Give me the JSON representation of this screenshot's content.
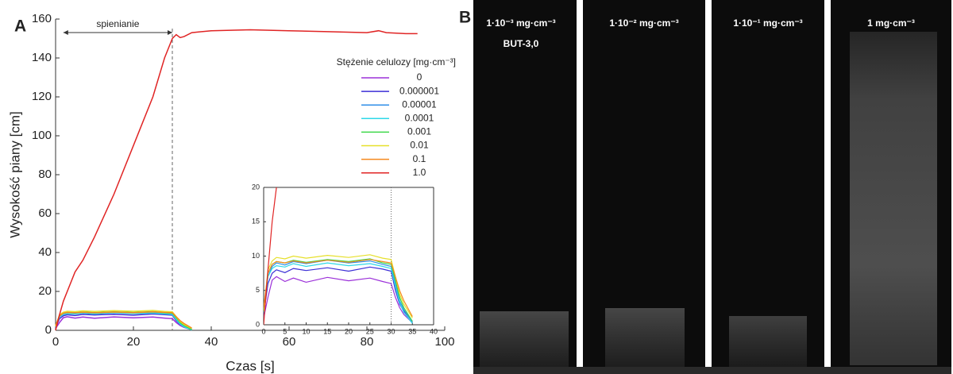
{
  "panels": {
    "a": "A",
    "b": "B"
  },
  "chart_data": {
    "type": "line",
    "x_label": "Czas [s]",
    "y_label": "Wysokość piany [cm]",
    "legend_title": "Stężenie celulozy [mg·cm⁻³]",
    "annotation": "spienianie",
    "annotation_range": [
      2,
      30
    ],
    "marker_x": 30,
    "xlim": [
      0,
      100
    ],
    "ylim": [
      0,
      160
    ],
    "xticks": [
      0,
      20,
      40,
      60,
      80,
      100
    ],
    "yticks": [
      0,
      20,
      40,
      60,
      80,
      100,
      120,
      140,
      160
    ],
    "x": [
      0,
      1,
      2,
      3,
      5,
      7,
      10,
      15,
      20,
      25,
      28,
      30,
      31,
      32,
      33,
      35,
      40,
      50,
      60,
      70,
      80,
      83,
      85,
      90,
      93
    ],
    "series": [
      {
        "name": "0",
        "color": "#9b30d9",
        "values": [
          1,
          4,
          6.5,
          7,
          6.3,
          6.8,
          6.2,
          6.9,
          6.4,
          6.8,
          6.3,
          6,
          4,
          2.5,
          1.5,
          0.3,
          null,
          null,
          null,
          null,
          null,
          null,
          null,
          null,
          null
        ]
      },
      {
        "name": "0.000001",
        "color": "#3c2fd6",
        "values": [
          1.5,
          6,
          7.5,
          8,
          7.6,
          8.2,
          7.9,
          8.3,
          7.8,
          8.4,
          8.1,
          7.8,
          5,
          3,
          2,
          0.5,
          null,
          null,
          null,
          null,
          null,
          null,
          null,
          null,
          null
        ]
      },
      {
        "name": "0.00001",
        "color": "#2f8fe8",
        "values": [
          2,
          7,
          8.5,
          9,
          8.7,
          9.2,
          8.9,
          9.4,
          9,
          9.3,
          8.8,
          8.5,
          6,
          3.5,
          2.2,
          0.4,
          null,
          null,
          null,
          null,
          null,
          null,
          null,
          null,
          null
        ]
      },
      {
        "name": "0.0001",
        "color": "#2ed8e8",
        "values": [
          1.8,
          7,
          8.2,
          8.6,
          8.4,
          8.9,
          8.5,
          9,
          8.6,
          8.9,
          8.5,
          8.2,
          5.5,
          3.2,
          1.8,
          0.2,
          null,
          null,
          null,
          null,
          null,
          null,
          null,
          null,
          null
        ]
      },
      {
        "name": "0.001",
        "color": "#3fd94a",
        "values": [
          2,
          7.5,
          8.8,
          9.2,
          9,
          9.4,
          9.1,
          9.5,
          9.2,
          9.6,
          9,
          8.8,
          6.5,
          4,
          2.5,
          0.5,
          null,
          null,
          null,
          null,
          null,
          null,
          null,
          null,
          null
        ]
      },
      {
        "name": "0.01",
        "color": "#e6e02a",
        "values": [
          2,
          8,
          9.3,
          9.8,
          9.6,
          10,
          9.7,
          10.1,
          9.8,
          10.2,
          9.7,
          9.5,
          7,
          4.5,
          3,
          1,
          null,
          null,
          null,
          null,
          null,
          null,
          null,
          null,
          null
        ]
      },
      {
        "name": "0.1",
        "color": "#f5891e",
        "values": [
          2.5,
          7.5,
          8.8,
          9.2,
          9,
          9.3,
          9,
          9.4,
          9.1,
          9.5,
          9.2,
          9,
          7,
          5,
          3.5,
          1.2,
          null,
          null,
          null,
          null,
          null,
          null,
          null,
          null,
          null
        ]
      },
      {
        "name": "1.0",
        "color": "#e02424",
        "values": [
          0,
          8,
          15,
          20,
          30,
          36,
          48,
          70,
          95,
          120,
          140,
          150,
          152,
          150.5,
          151,
          153,
          154,
          154.5,
          154,
          153.5,
          153,
          154,
          153,
          152.5,
          152.5
        ]
      }
    ],
    "inset": {
      "xlim": [
        0,
        40
      ],
      "ylim": [
        0,
        20
      ],
      "xticks": [
        0,
        5,
        10,
        15,
        20,
        25,
        30,
        35,
        40
      ],
      "yticks": [
        0,
        5,
        10,
        15,
        20
      ]
    }
  },
  "photos": [
    {
      "label": "1·10⁻³ mg·cm⁻³",
      "sublabel": "BUT-3,0"
    },
    {
      "label": "1·10⁻² mg·cm⁻³"
    },
    {
      "label": "1·10⁻¹ mg·cm⁻³"
    },
    {
      "label": "1 mg·cm⁻³"
    }
  ]
}
